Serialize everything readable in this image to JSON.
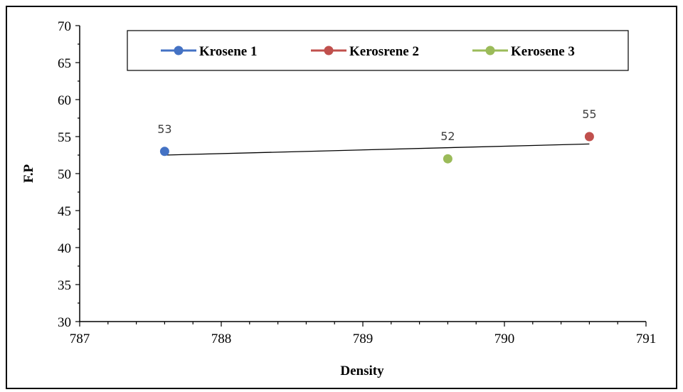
{
  "chart_data": {
    "type": "scatter",
    "title": "",
    "xlabel": "Density",
    "ylabel": "F.P",
    "xlim": [
      787,
      791
    ],
    "ylim": [
      30,
      70
    ],
    "x_ticks": [
      "787",
      "788",
      "789",
      "790",
      "791"
    ],
    "y_ticks": [
      "30",
      "35",
      "40",
      "45",
      "50",
      "55",
      "60",
      "65",
      "70"
    ],
    "grid": false,
    "legend_position": "top",
    "series": [
      {
        "name": "Krosene 1",
        "color": "#4472C4",
        "points": [
          {
            "x": 787.6,
            "y": 53,
            "label": "53"
          }
        ]
      },
      {
        "name": "Kerosrene 2",
        "color": "#C0504D",
        "points": [
          {
            "x": 790.6,
            "y": 55,
            "label": "55"
          }
        ]
      },
      {
        "name": "Kerosene 3",
        "color": "#9BBB59",
        "points": [
          {
            "x": 789.6,
            "y": 52,
            "label": "52"
          }
        ]
      }
    ],
    "trendline": {
      "type": "linear",
      "color": "#000000",
      "x_range": [
        787.6,
        790.6
      ]
    }
  }
}
